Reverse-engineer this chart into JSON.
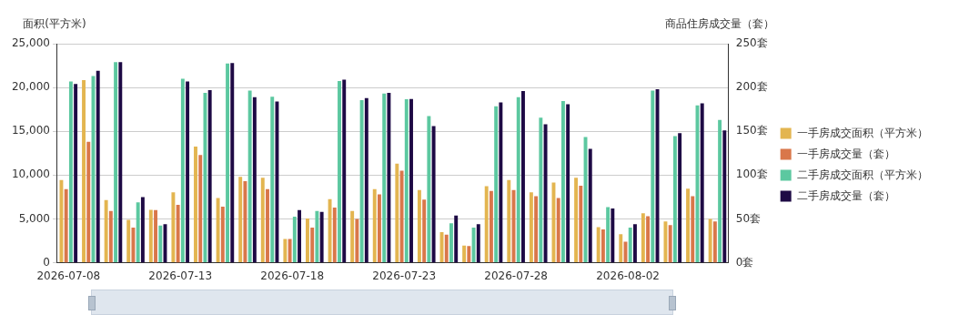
{
  "chart_data": {
    "type": "bar",
    "ylabel": "面积(平方米)",
    "y2label": "商品住房成交量（套）",
    "categories": [
      "2026-07-08",
      null,
      null,
      null,
      null,
      "2026-07-13",
      null,
      null,
      null,
      null,
      "2026-07-18",
      null,
      null,
      null,
      null,
      "2026-07-23",
      null,
      null,
      null,
      null,
      "2026-07-28",
      null,
      null,
      null,
      null,
      "2026-08-02",
      null,
      null,
      null,
      null
    ],
    "series": [
      {
        "name": "一手房成交面积（平方米）",
        "color": "#e3b550",
        "values": [
          9450,
          20850,
          7150,
          4900,
          6050,
          8050,
          13250,
          7400,
          9800,
          9700,
          2700,
          5050,
          7250,
          5900,
          8400,
          11300,
          8300,
          3500,
          1950,
          8750,
          9450,
          8050,
          9150,
          9700,
          4050,
          3250,
          5650,
          4700,
          8450,
          5000
        ]
      },
      {
        "name": "一手房成交量（套）",
        "color": "#d9774a",
        "axis": "y2",
        "values": [
          84,
          138,
          59,
          40,
          60,
          66,
          123,
          64,
          93,
          84,
          27,
          40,
          63,
          50,
          78,
          105,
          72,
          32,
          19,
          82,
          83,
          76,
          74,
          88,
          38,
          24,
          53,
          43,
          76,
          47
        ]
      },
      {
        "name": "二手房成交面积（平方米）",
        "color": "#5cc8a0",
        "values": [
          20700,
          21300,
          22900,
          6900,
          4250,
          21000,
          19400,
          22750,
          19650,
          18950,
          5250,
          5900,
          20750,
          18550,
          19300,
          18650,
          16750,
          4500,
          4000,
          17850,
          18900,
          16550,
          18450,
          14350,
          6350,
          4000,
          19650,
          14450,
          17950,
          16300
        ]
      },
      {
        "name": "二手房成交量（套）",
        "color": "#1e0a45",
        "axis": "y2",
        "values": [
          204,
          219,
          229,
          75,
          44,
          207,
          197,
          228,
          189,
          184,
          60,
          58,
          209,
          188,
          194,
          187,
          156,
          54,
          44,
          183,
          196,
          158,
          181,
          130,
          62,
          44,
          198,
          148,
          182,
          151
        ]
      }
    ],
    "ylim": [
      0,
      25000
    ],
    "yticks": [
      {
        "value": 0,
        "label": "0"
      },
      {
        "value": 5000,
        "label": "5,000"
      },
      {
        "value": 10000,
        "label": "10,000"
      },
      {
        "value": 15000,
        "label": "15,000"
      },
      {
        "value": 20000,
        "label": "20,000"
      },
      {
        "value": 25000,
        "label": "25,000"
      }
    ],
    "y2lim": [
      0,
      250
    ],
    "y2ticks": [
      {
        "value": 0,
        "label": "0套"
      },
      {
        "value": 50,
        "label": "50套"
      },
      {
        "value": 100,
        "label": "100套"
      },
      {
        "value": 150,
        "label": "150套"
      },
      {
        "value": 200,
        "label": "200套"
      },
      {
        "value": 250,
        "label": "250套"
      }
    ],
    "grid": "y",
    "legend": "right"
  }
}
